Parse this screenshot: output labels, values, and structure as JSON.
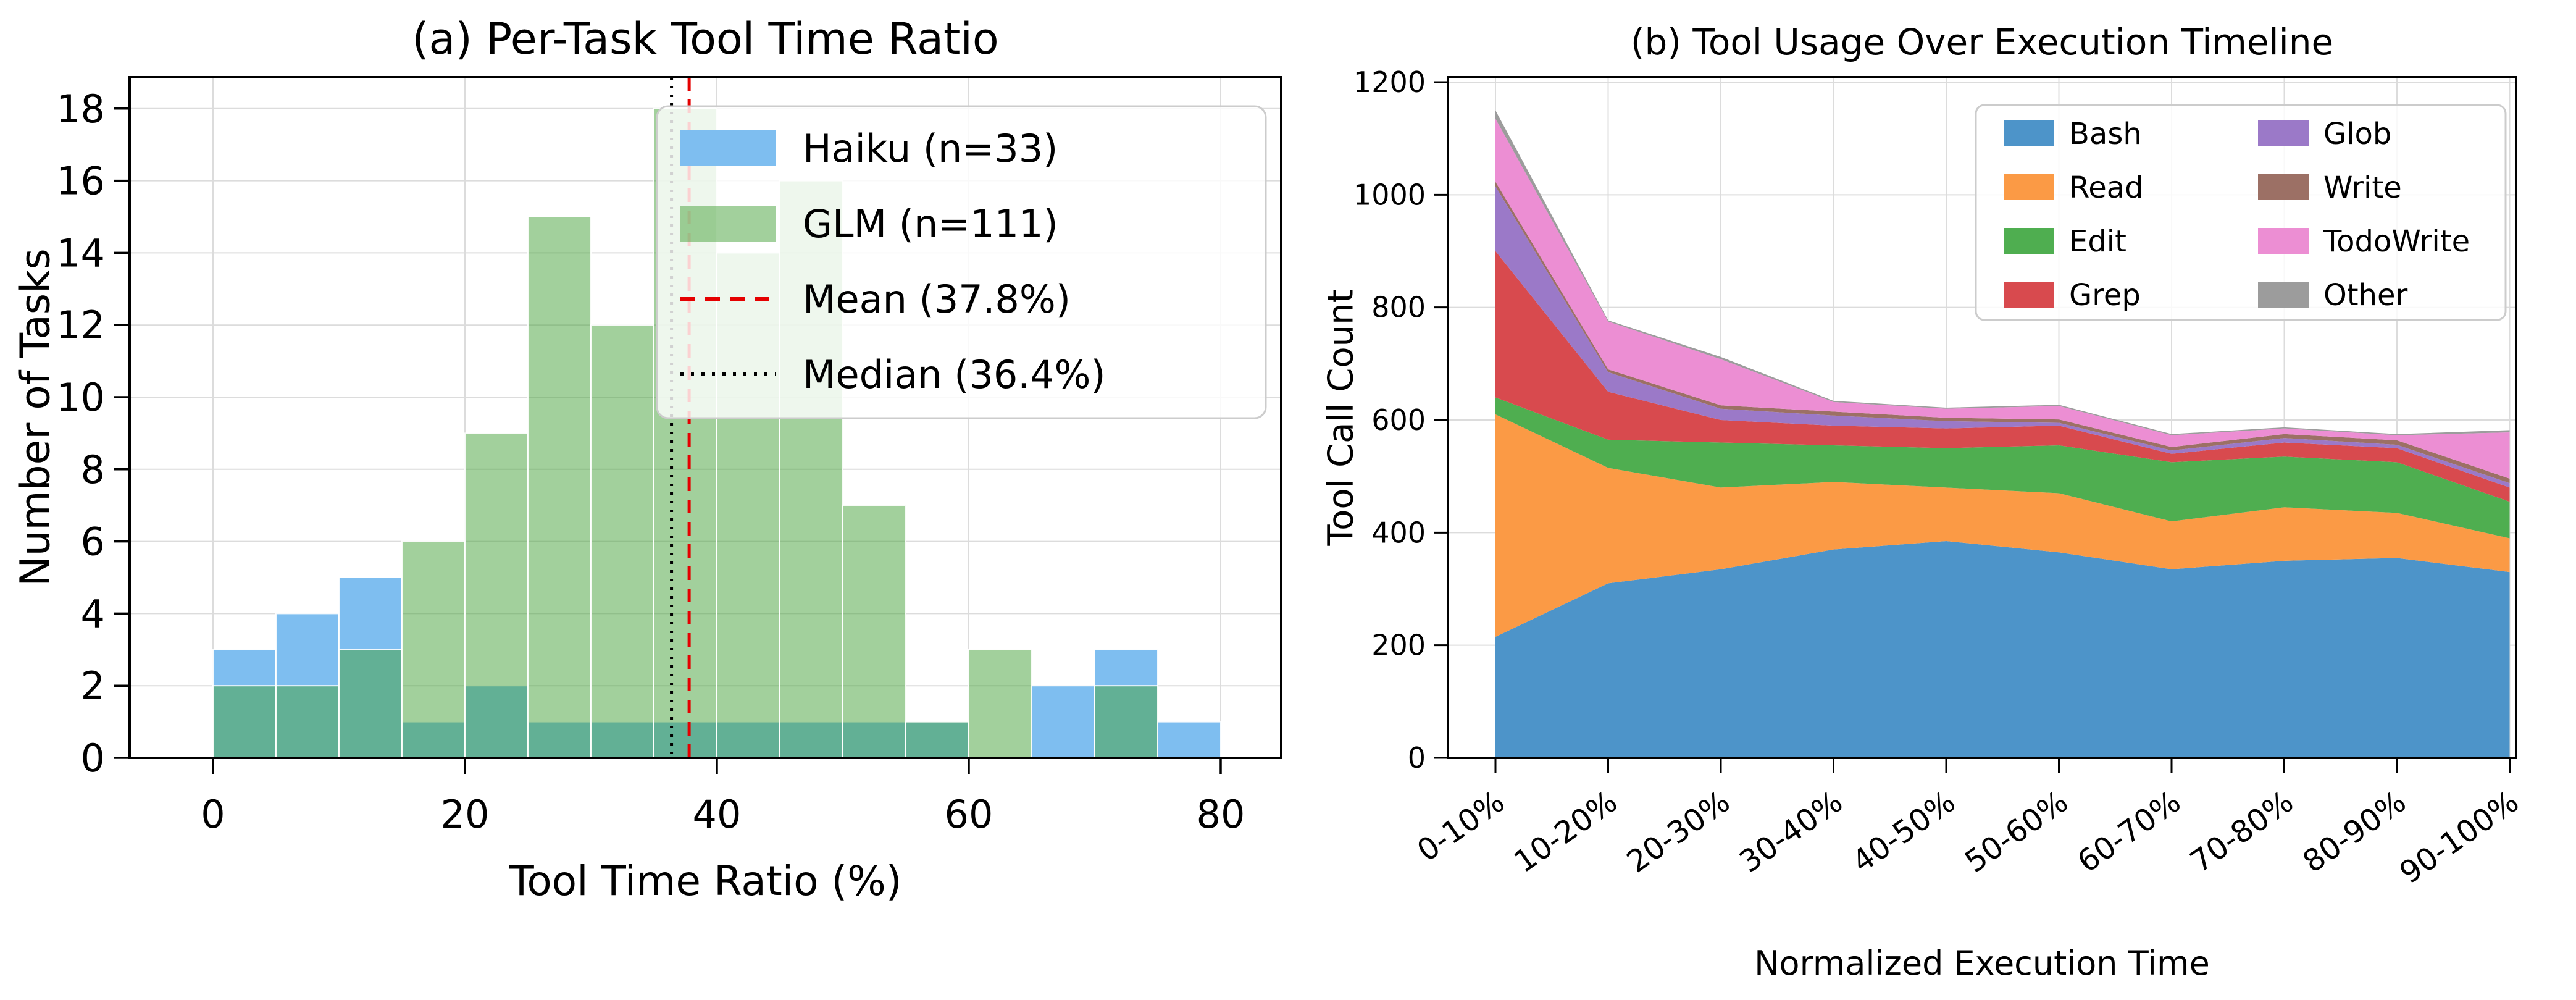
{
  "chart_data": [
    {
      "type": "bar",
      "subtype": "histogram-overlaid",
      "title": "(a) Per-Task Tool Time Ratio",
      "xlabel": "Tool Time Ratio (%)",
      "ylabel": "Number of Tasks",
      "bin_edges": [
        0,
        5,
        10,
        15,
        20,
        25,
        30,
        35,
        40,
        45,
        50,
        55,
        60,
        65,
        70,
        75,
        80
      ],
      "series": [
        {
          "name": "Haiku (n=33)",
          "color": "#7EBEF0",
          "opacity": 1.0,
          "values": [
            3,
            4,
            5,
            1,
            2,
            1,
            1,
            1,
            1,
            1,
            1,
            1,
            0,
            2,
            3,
            1
          ]
        },
        {
          "name": "GLM (n=111)",
          "color": "rgba(69,161,57,0.5)",
          "opacity": 1.0,
          "values": [
            2,
            2,
            3,
            6,
            9,
            15,
            12,
            18,
            14,
            16,
            7,
            1,
            3,
            0,
            2,
            0
          ]
        }
      ],
      "reference_lines": [
        {
          "name": "Mean (37.8%)",
          "value": 37.8,
          "color": "#e50000",
          "style": "dashed"
        },
        {
          "name": "Median (36.4%)",
          "value": 36.4,
          "color": "#000000",
          "style": "dotted"
        }
      ],
      "xticks": [
        0,
        20,
        40,
        60,
        80
      ],
      "yticks": [
        0,
        2,
        4,
        6,
        8,
        10,
        12,
        14,
        16,
        18
      ],
      "xlim": [
        -6.6,
        85.2
      ],
      "ylim": [
        0,
        18.85
      ],
      "grid": true,
      "legend_position": "upper right"
    },
    {
      "type": "area",
      "subtype": "stacked",
      "title": "(b) Tool Usage Over Execution Timeline",
      "xlabel": "Normalized Execution Time",
      "ylabel": "Tool Call Count",
      "categories": [
        "0-10%",
        "10-20%",
        "20-30%",
        "30-40%",
        "40-50%",
        "50-60%",
        "60-70%",
        "70-80%",
        "80-90%",
        "90-100%"
      ],
      "series": [
        {
          "name": "Bash",
          "color": "#4D94C9",
          "values": [
            215,
            310,
            335,
            370,
            385,
            365,
            335,
            350,
            355,
            330
          ]
        },
        {
          "name": "Read",
          "color": "#FB9A45",
          "values": [
            395,
            205,
            145,
            120,
            95,
            105,
            85,
            95,
            80,
            60
          ]
        },
        {
          "name": "Edit",
          "color": "#4FAE50",
          "values": [
            30,
            50,
            80,
            65,
            70,
            85,
            105,
            90,
            90,
            65
          ]
        },
        {
          "name": "Grep",
          "color": "#D84A4E",
          "values": [
            260,
            85,
            40,
            35,
            35,
            35,
            15,
            25,
            25,
            25
          ]
        },
        {
          "name": "Glob",
          "color": "#9B79C8",
          "values": [
            115,
            35,
            20,
            18,
            13,
            5,
            6,
            8,
            6,
            8
          ]
        },
        {
          "name": "Write",
          "color": "#9C7065",
          "values": [
            8,
            5,
            6,
            7,
            6,
            6,
            6,
            7,
            8,
            8
          ]
        },
        {
          "name": "TodoWrite",
          "color": "#EC8ED3",
          "values": [
            112,
            85,
            82,
            17,
            16,
            24,
            21,
            10,
            9,
            82
          ]
        },
        {
          "name": "Other",
          "color": "#9C9C9C",
          "values": [
            15,
            2,
            4,
            2,
            2,
            2,
            2,
            2,
            2,
            4
          ]
        }
      ],
      "yticks": [
        0,
        200,
        400,
        600,
        800,
        1000,
        1200
      ],
      "ylim": [
        0,
        1209
      ],
      "grid": true,
      "legend_position": "upper right",
      "legend_columns": 2
    }
  ],
  "style": {
    "grid_color": "#dcdcdc",
    "spine_color": "#000000",
    "legend_border_color": "#cccccc",
    "legend_background": "rgba(255,255,255,0.82)",
    "bar_edge_color": "rgba(255,255,255,0.9)"
  }
}
